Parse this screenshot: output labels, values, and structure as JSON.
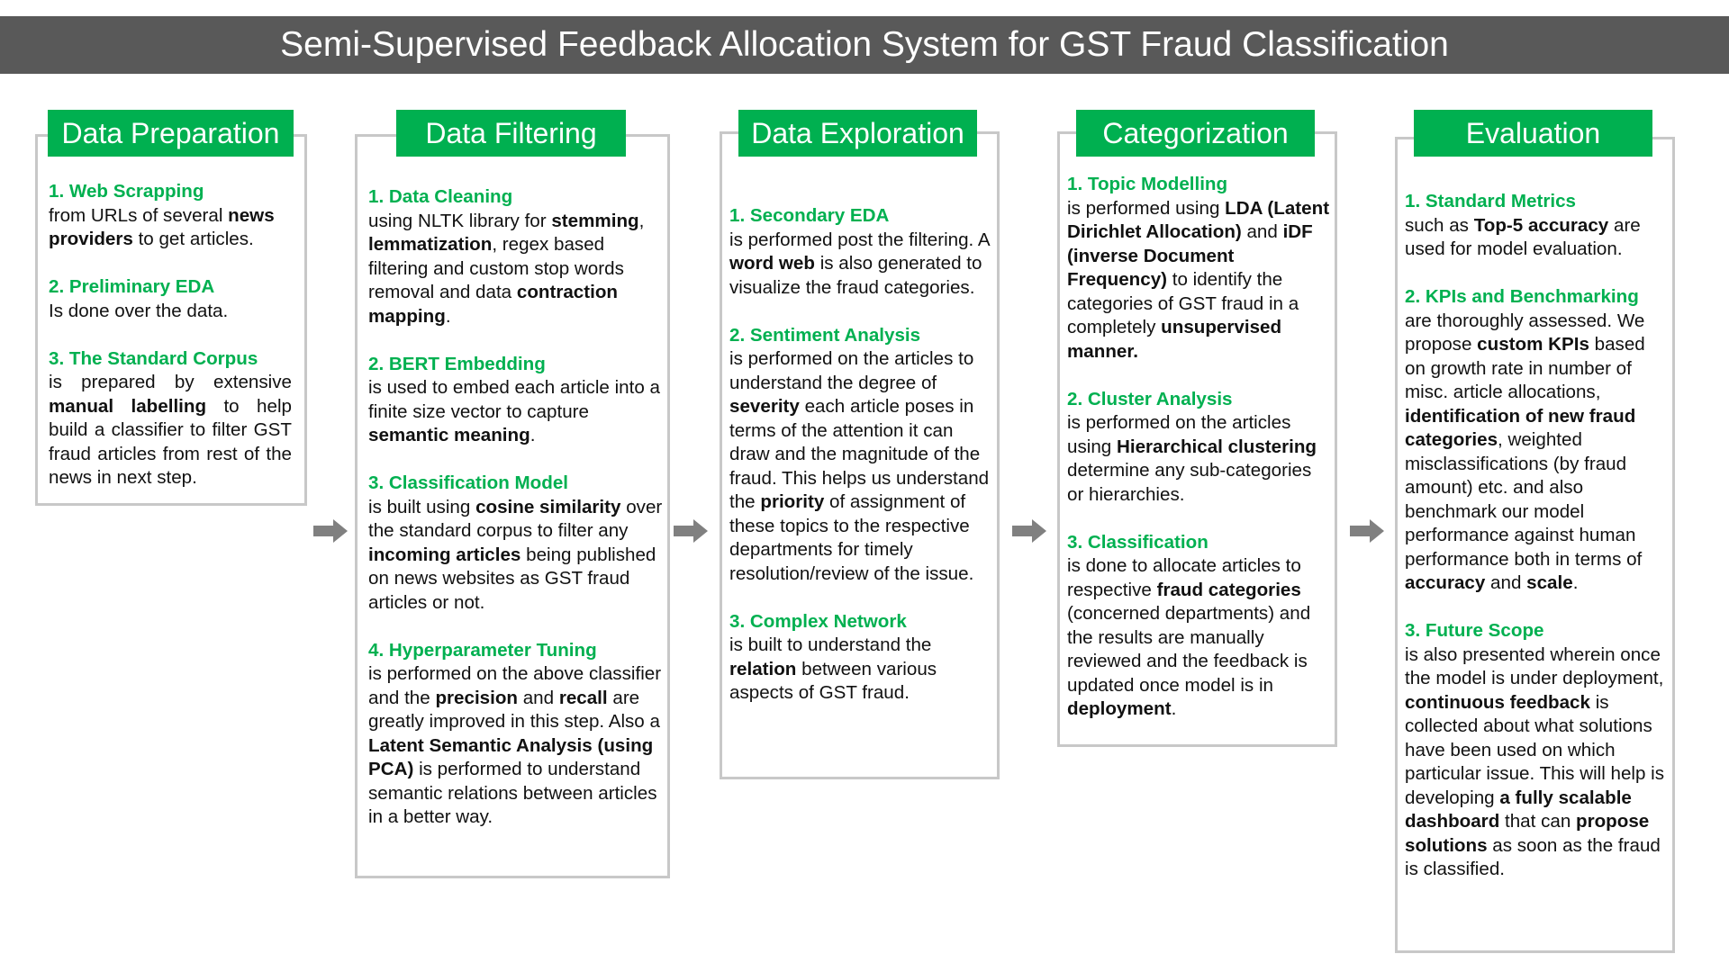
{
  "title": "Semi-Supervised Feedback Allocation System for GST Fraud Classification",
  "colors": {
    "header_bar": "#595959",
    "accent": "#00b050",
    "card_border": "#c8c8c8",
    "arrow": "#808080"
  },
  "stages": [
    {
      "heading": "Data Preparation",
      "sections": [
        {
          "title": "1. Web Scrapping",
          "parts": [
            {
              "t": "from URLs of several "
            },
            {
              "t": "news providers",
              "b": true
            },
            {
              "t": " to get articles."
            }
          ]
        },
        {
          "title": "2. Preliminary EDA",
          "parts": [
            {
              "t": "Is done over the data."
            }
          ]
        },
        {
          "title": "3. The Standard Corpus",
          "justify": true,
          "parts": [
            {
              "t": "is prepared by extensive "
            },
            {
              "t": "manual labelling",
              "b": true
            },
            {
              "t": " to help build a classifier to filter GST fraud articles from rest of the news in next step."
            }
          ]
        }
      ]
    },
    {
      "heading": "Data Filtering",
      "sections": [
        {
          "title": "1. Data Cleaning",
          "parts": [
            {
              "t": "using NLTK library for "
            },
            {
              "t": "stemming",
              "b": true
            },
            {
              "t": ", "
            },
            {
              "t": "lemmatization",
              "b": true
            },
            {
              "t": ", regex based filtering and custom stop words removal and data "
            },
            {
              "t": "contraction mapping",
              "b": true
            },
            {
              "t": "."
            }
          ]
        },
        {
          "title": "2. BERT Embedding",
          "parts": [
            {
              "t": "is used to embed each article into a finite size vector to capture "
            },
            {
              "t": "semantic meaning",
              "b": true
            },
            {
              "t": "."
            }
          ]
        },
        {
          "title": "3. Classification Model",
          "parts": [
            {
              "t": "is built using "
            },
            {
              "t": "cosine similarity",
              "b": true
            },
            {
              "t": " over the standard corpus to filter any "
            },
            {
              "t": "incoming articles",
              "b": true
            },
            {
              "t": " being published on news websites as GST fraud articles or not."
            }
          ]
        },
        {
          "title": "4. Hyperparameter Tuning",
          "parts": [
            {
              "t": "is performed on the above classifier and the "
            },
            {
              "t": "precision",
              "b": true
            },
            {
              "t": " and "
            },
            {
              "t": "recall",
              "b": true
            },
            {
              "t": " are greatly improved in this step. Also a "
            },
            {
              "t": "Latent Semantic Analysis (using PCA)",
              "b": true
            },
            {
              "t": "  is performed to understand semantic relations between articles in a better way."
            }
          ]
        }
      ]
    },
    {
      "heading": "Data Exploration",
      "sections": [
        {
          "title": "1. Secondary EDA",
          "parts": [
            {
              "t": "is performed post the filtering. A "
            },
            {
              "t": "word web",
              "b": true
            },
            {
              "t": " is also generated to visualize the fraud categories."
            }
          ]
        },
        {
          "title": "2. Sentiment Analysis",
          "parts": [
            {
              "t": "is performed on the articles to understand the degree of "
            },
            {
              "t": "severity",
              "b": true
            },
            {
              "t": " each article poses in terms of the attention it can draw and the magnitude of the fraud. This helps us understand the "
            },
            {
              "t": "priority",
              "b": true
            },
            {
              "t": " of assignment of these topics to the respective departments for timely resolution/review of the issue."
            }
          ]
        },
        {
          "title": "3. Complex Network",
          "parts": [
            {
              "t": "is built to understand the "
            },
            {
              "t": "relation",
              "b": true
            },
            {
              "t": " between various aspects of GST fraud."
            }
          ]
        }
      ]
    },
    {
      "heading": "Categorization",
      "sections": [
        {
          "title": "1. Topic Modelling",
          "parts": [
            {
              "t": "is performed using "
            },
            {
              "t": "LDA (Latent Dirichlet Allocation)",
              "b": true
            },
            {
              "t": " and "
            },
            {
              "t": "iDF (inverse Document Frequency)",
              "b": true
            },
            {
              "t": " to identify the categories of GST fraud in a completely "
            },
            {
              "t": "unsupervised manner.",
              "b": true
            }
          ]
        },
        {
          "title": "2. Cluster Analysis",
          "parts": [
            {
              "t": "is performed on the articles using "
            },
            {
              "t": "Hierarchical clustering",
              "b": true
            },
            {
              "t": "  determine any sub-categories or hierarchies."
            }
          ]
        },
        {
          "title": "3. Classification",
          "parts": [
            {
              "t": "is done to allocate articles to respective "
            },
            {
              "t": "fraud categories",
              "b": true
            },
            {
              "t": " (concerned departments) and the results are manually reviewed and the feedback is updated once model is in "
            },
            {
              "t": "deployment",
              "b": true
            },
            {
              "t": "."
            }
          ]
        }
      ]
    },
    {
      "heading": "Evaluation",
      "sections": [
        {
          "title": "1. Standard Metrics",
          "parts": [
            {
              "t": "such as "
            },
            {
              "t": "Top-5 accuracy",
              "b": true
            },
            {
              "t": " are used for model evaluation."
            }
          ]
        },
        {
          "title": "2. KPIs and Benchmarking",
          "parts": [
            {
              "t": "are thoroughly assessed. We propose "
            },
            {
              "t": "custom KPIs",
              "b": true
            },
            {
              "t": " based on growth rate in number of misc. article allocations, "
            },
            {
              "t": "identification of new fraud categories",
              "b": true
            },
            {
              "t": ", weighted misclassifications (by fraud amount) etc. and also benchmark our model performance against human performance both in terms of "
            },
            {
              "t": "accuracy",
              "b": true
            },
            {
              "t": " and "
            },
            {
              "t": "scale",
              "b": true
            },
            {
              "t": "."
            }
          ]
        },
        {
          "title": "3. Future Scope",
          "parts": [
            {
              "t": "is also presented wherein once the model is under deployment, "
            },
            {
              "t": "continuous feedback",
              "b": true
            },
            {
              "t": " is collected about what solutions have been used on which particular issue. This will help is developing "
            },
            {
              "t": "a fully scalable dashboard",
              "b": true
            },
            {
              "t": " that can "
            },
            {
              "t": "propose solutions",
              "b": true
            },
            {
              "t": " as soon as the fraud is classified."
            }
          ]
        }
      ]
    }
  ]
}
